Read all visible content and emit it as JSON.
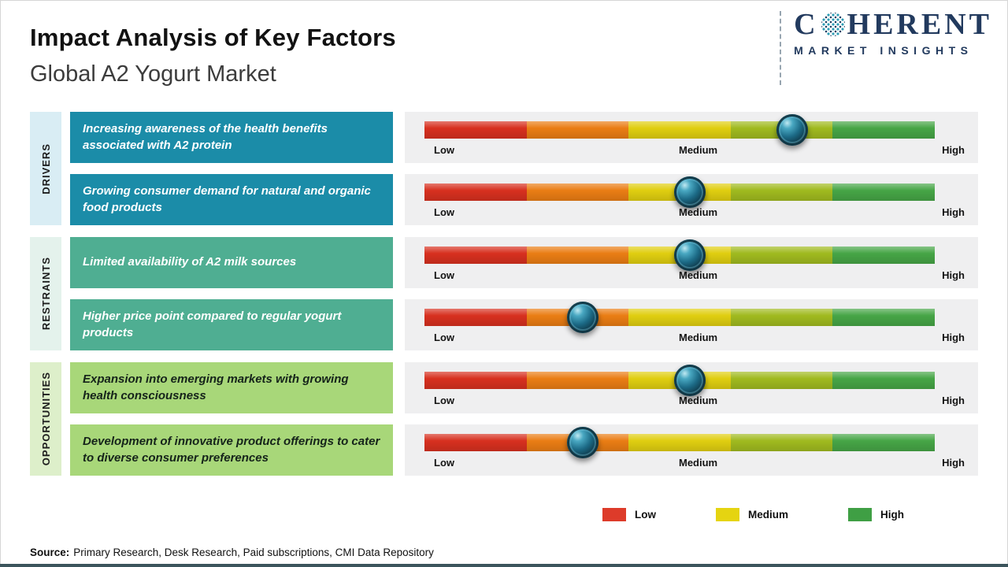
{
  "header": {
    "title": "Impact Analysis of Key Factors",
    "subtitle": "Global A2 Yogurt Market"
  },
  "logo": {
    "word_start": "C",
    "word_end": "HERENT",
    "tagline": "MARKET INSIGHTS"
  },
  "scale": {
    "low": "Low",
    "medium": "Medium",
    "high": "High"
  },
  "bar": {
    "segment_colors": [
      "#d7301f",
      "#ea7d14",
      "#e0ce10",
      "#a0ba1f",
      "#46a546"
    ],
    "track_color": "#efeff0"
  },
  "groups": [
    {
      "label": "DRIVERS",
      "box_color": "#1b8ca8",
      "box_text_color": "#ffffff",
      "strip_color": "#d9edf4",
      "rows": [
        {
          "text": "Increasing awareness of the health benefits associated with A2 protein",
          "impact_percent": 72
        },
        {
          "text": "Growing consumer demand for natural and organic food products",
          "impact_percent": 52
        }
      ]
    },
    {
      "label": "RESTRAINTS",
      "box_color": "#4fae92",
      "box_text_color": "#ffffff",
      "strip_color": "#e4f2ec",
      "rows": [
        {
          "text": "Limited availability of A2 milk sources",
          "impact_percent": 52
        },
        {
          "text": "Higher price point compared to regular yogurt products",
          "impact_percent": 31
        }
      ]
    },
    {
      "label": "OPPORTUNITIES",
      "box_color": "#a8d779",
      "box_text_color": "#15231a",
      "strip_color": "#ddefca",
      "rows": [
        {
          "text": "Expansion into emerging markets with growing health consciousness",
          "impact_percent": 52
        },
        {
          "text": "Development of innovative product offerings to cater to diverse consumer preferences",
          "impact_percent": 31
        }
      ]
    }
  ],
  "legend": [
    {
      "label": "Low",
      "color": "#dd3b2a"
    },
    {
      "label": "Medium",
      "color": "#e5d411"
    },
    {
      "label": "High",
      "color": "#3f9f44"
    }
  ],
  "source": {
    "prefix": "Source:",
    "text": "Primary Research, Desk Research, Paid subscriptions, CMI Data Repository"
  },
  "chart_data": {
    "type": "bar",
    "title": "Impact Analysis of Key Factors",
    "subtitle": "Global A2 Yogurt Market",
    "scale_labels": [
      "Low",
      "Medium",
      "High"
    ],
    "x_range_percent": [
      0,
      100
    ],
    "rows": [
      {
        "group": "Drivers",
        "factor": "Increasing awareness of the health benefits associated with A2 protein",
        "impact_percent": 72,
        "impact_level": "Medium-High"
      },
      {
        "group": "Drivers",
        "factor": "Growing consumer demand for natural and organic food products",
        "impact_percent": 52,
        "impact_level": "Medium"
      },
      {
        "group": "Restraints",
        "factor": "Limited availability of A2 milk sources",
        "impact_percent": 52,
        "impact_level": "Medium"
      },
      {
        "group": "Restraints",
        "factor": "Higher price point compared to regular yogurt products",
        "impact_percent": 31,
        "impact_level": "Low-Medium"
      },
      {
        "group": "Opportunities",
        "factor": "Expansion into emerging markets with growing health consciousness",
        "impact_percent": 52,
        "impact_level": "Medium"
      },
      {
        "group": "Opportunities",
        "factor": "Development of innovative product offerings to cater to diverse consumer preferences",
        "impact_percent": 31,
        "impact_level": "Low-Medium"
      }
    ]
  }
}
